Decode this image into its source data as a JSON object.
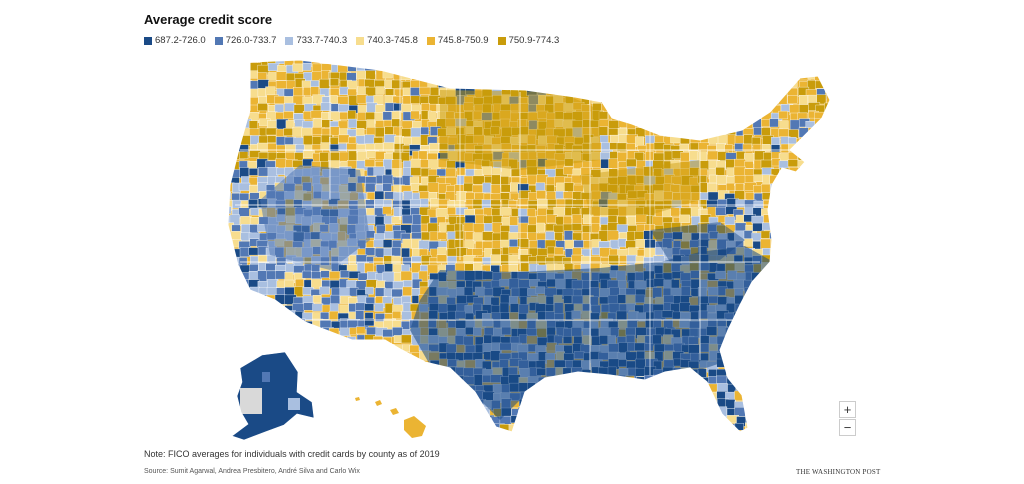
{
  "title": "Average credit score",
  "legend": [
    {
      "label": "687.2-726.0",
      "color": "#1a4a86"
    },
    {
      "label": "726.0-733.7",
      "color": "#5278b4"
    },
    {
      "label": "733.7-740.3",
      "color": "#a9bfe0"
    },
    {
      "label": "740.3-745.8",
      "color": "#f7dd8e"
    },
    {
      "label": "745.8-750.9",
      "color": "#ebb433"
    },
    {
      "label": "750.9-774.3",
      "color": "#c99c0b"
    }
  ],
  "zoom": {
    "in_label": "+",
    "out_label": "−"
  },
  "note": "Note: FICO averages for individuals with credit cards by county as of 2019",
  "source": "Source: Sumit Agarwal, Andrea Presbitero, André Silva and Carlo Wix",
  "brand": "THE WASHINGTON POST"
}
